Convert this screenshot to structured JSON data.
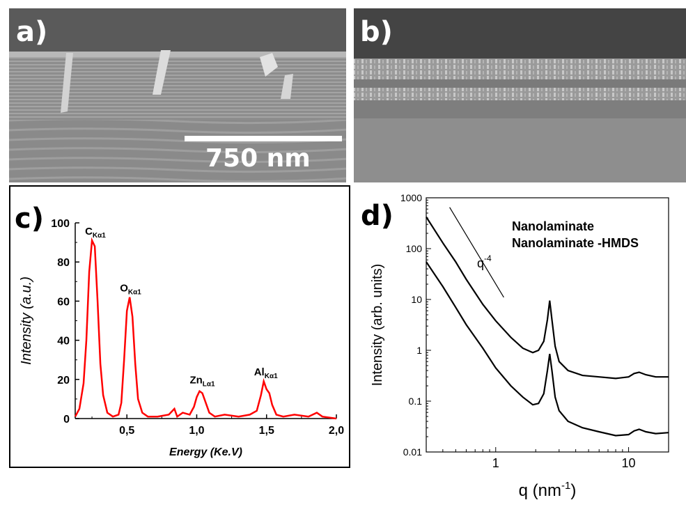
{
  "panels": {
    "a": {
      "label": "a)",
      "scale_bar": "750 nm"
    },
    "b": {
      "label": "b)"
    },
    "c": {
      "label": "c)"
    },
    "d": {
      "label": "d)"
    }
  },
  "chart_data": [
    {
      "id": "c",
      "type": "line",
      "xlabel": "Energy (Ke.V)",
      "ylabel": "Intensity (a.u.)",
      "xlim": [
        0.13,
        2.0
      ],
      "ylim": [
        0,
        100
      ],
      "xticks": [
        {
          "v": 0.5,
          "label": "0,5"
        },
        {
          "v": 1.0,
          "label": "1,0"
        },
        {
          "v": 1.5,
          "label": "1,5"
        },
        {
          "v": 2.0,
          "label": "2,0"
        }
      ],
      "yticks": [
        0,
        20,
        40,
        60,
        80,
        100
      ],
      "color": "#ff0000",
      "annotations": [
        {
          "main": "C",
          "sub": "Kα1",
          "x": 0.27,
          "y": 94
        },
        {
          "main": "O",
          "sub": "Kα1",
          "x": 0.52,
          "y": 65
        },
        {
          "main": "Zn",
          "sub": "Lα1",
          "x": 1.02,
          "y": 18
        },
        {
          "main": "Al",
          "sub": "Kα1",
          "x": 1.48,
          "y": 22
        }
      ],
      "series": [
        {
          "values": [
            [
              0.13,
              1
            ],
            [
              0.16,
              5
            ],
            [
              0.19,
              18
            ],
            [
              0.21,
              40
            ],
            [
              0.23,
              75
            ],
            [
              0.25,
              91
            ],
            [
              0.27,
              88
            ],
            [
              0.29,
              60
            ],
            [
              0.31,
              28
            ],
            [
              0.33,
              12
            ],
            [
              0.36,
              3
            ],
            [
              0.4,
              1
            ],
            [
              0.44,
              2
            ],
            [
              0.46,
              8
            ],
            [
              0.48,
              30
            ],
            [
              0.5,
              55
            ],
            [
              0.52,
              62
            ],
            [
              0.54,
              52
            ],
            [
              0.56,
              28
            ],
            [
              0.58,
              10
            ],
            [
              0.61,
              3
            ],
            [
              0.65,
              1
            ],
            [
              0.72,
              1
            ],
            [
              0.8,
              2
            ],
            [
              0.84,
              5
            ],
            [
              0.86,
              1
            ],
            [
              0.9,
              3
            ],
            [
              0.95,
              2
            ],
            [
              0.98,
              6
            ],
            [
              1.0,
              11
            ],
            [
              1.02,
              14
            ],
            [
              1.04,
              13
            ],
            [
              1.06,
              9
            ],
            [
              1.09,
              3
            ],
            [
              1.13,
              1
            ],
            [
              1.2,
              2
            ],
            [
              1.3,
              1
            ],
            [
              1.38,
              2
            ],
            [
              1.43,
              4
            ],
            [
              1.46,
              12
            ],
            [
              1.48,
              19
            ],
            [
              1.5,
              15
            ],
            [
              1.52,
              13
            ],
            [
              1.54,
              7
            ],
            [
              1.57,
              2
            ],
            [
              1.62,
              1
            ],
            [
              1.7,
              2
            ],
            [
              1.8,
              1
            ],
            [
              1.86,
              3
            ],
            [
              1.9,
              1
            ],
            [
              2.0,
              0
            ]
          ]
        }
      ]
    },
    {
      "id": "d",
      "type": "line",
      "log_x": true,
      "log_y": true,
      "xlabel": "q (nm",
      "xlabel_sup": "-1",
      "xlabel_tail": ")",
      "ylabel": "Intensity (arb. units)",
      "xlim": [
        0.3,
        20
      ],
      "ylim": [
        0.01,
        1000
      ],
      "xticks": [
        {
          "v": 1,
          "label": "1"
        },
        {
          "v": 10,
          "label": "10"
        }
      ],
      "yticks": [
        {
          "v": 0.01,
          "label": "0.01"
        },
        {
          "v": 0.1,
          "label": "0.1"
        },
        {
          "v": 1,
          "label": "1"
        },
        {
          "v": 10,
          "label": "10"
        },
        {
          "v": 100,
          "label": "100"
        },
        {
          "v": 1000,
          "label": "1000"
        }
      ],
      "legend_entries": [
        "Nanolaminate",
        "Nanolaminate -HMDS"
      ],
      "annotation": {
        "text": "q",
        "sup": "-4"
      },
      "reference_line": [
        [
          0.45,
          650
        ],
        [
          1.15,
          11
        ]
      ],
      "color": "#000000",
      "series": [
        {
          "values": [
            [
              0.3,
              420
            ],
            [
              0.4,
              130
            ],
            [
              0.5,
              55
            ],
            [
              0.6,
              25
            ],
            [
              0.8,
              8
            ],
            [
              1.0,
              3.8
            ],
            [
              1.3,
              1.8
            ],
            [
              1.6,
              1.1
            ],
            [
              1.9,
              0.9
            ],
            [
              2.1,
              1.0
            ],
            [
              2.3,
              1.5
            ],
            [
              2.45,
              4
            ],
            [
              2.55,
              9.5
            ],
            [
              2.65,
              4
            ],
            [
              2.8,
              1.2
            ],
            [
              3.0,
              0.6
            ],
            [
              3.5,
              0.4
            ],
            [
              4.5,
              0.32
            ],
            [
              6,
              0.3
            ],
            [
              8,
              0.28
            ],
            [
              10,
              0.3
            ],
            [
              11,
              0.35
            ],
            [
              12,
              0.37
            ],
            [
              13.5,
              0.33
            ],
            [
              16,
              0.3
            ],
            [
              20,
              0.3
            ]
          ]
        },
        {
          "values": [
            [
              0.3,
              55
            ],
            [
              0.4,
              18
            ],
            [
              0.5,
              7
            ],
            [
              0.6,
              3.2
            ],
            [
              0.8,
              1.1
            ],
            [
              1.0,
              0.45
            ],
            [
              1.3,
              0.2
            ],
            [
              1.6,
              0.12
            ],
            [
              1.9,
              0.085
            ],
            [
              2.1,
              0.09
            ],
            [
              2.3,
              0.14
            ],
            [
              2.45,
              0.4
            ],
            [
              2.55,
              0.85
            ],
            [
              2.65,
              0.4
            ],
            [
              2.8,
              0.12
            ],
            [
              3.0,
              0.065
            ],
            [
              3.5,
              0.04
            ],
            [
              4.5,
              0.03
            ],
            [
              6,
              0.025
            ],
            [
              8,
              0.021
            ],
            [
              10,
              0.022
            ],
            [
              11,
              0.026
            ],
            [
              12,
              0.028
            ],
            [
              13.5,
              0.025
            ],
            [
              16,
              0.023
            ],
            [
              20,
              0.024
            ]
          ]
        }
      ]
    }
  ]
}
